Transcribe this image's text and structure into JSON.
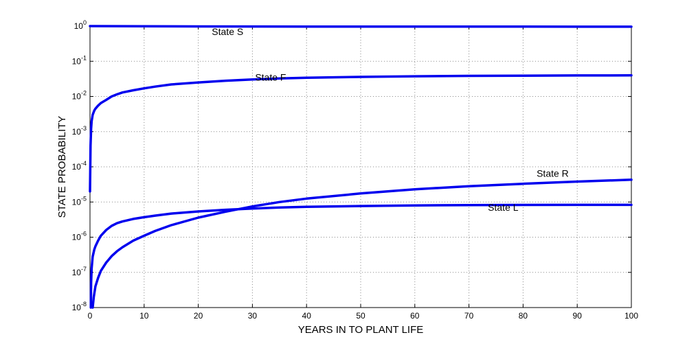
{
  "chart_data": {
    "type": "line",
    "xlabel": "YEARS IN TO PLANT LIFE",
    "ylabel": "STATE PROBABILITY",
    "xlim": [
      0,
      100
    ],
    "ylim": [
      1e-08,
      1
    ],
    "yscale": "log",
    "grid": true,
    "xticks": [
      0,
      10,
      20,
      30,
      40,
      50,
      60,
      70,
      80,
      90,
      100
    ],
    "yticks": [
      {
        "base": "10",
        "exp": "-8",
        "value": 1e-08
      },
      {
        "base": "10",
        "exp": "-7",
        "value": 1e-07
      },
      {
        "base": "10",
        "exp": "-6",
        "value": 1e-06
      },
      {
        "base": "10",
        "exp": "-5",
        "value": 1e-05
      },
      {
        "base": "10",
        "exp": "-4",
        "value": 0.0001
      },
      {
        "base": "10",
        "exp": "-3",
        "value": 0.001
      },
      {
        "base": "10",
        "exp": "-2",
        "value": 0.01
      },
      {
        "base": "10",
        "exp": "-1",
        "value": 0.1
      },
      {
        "base": "10",
        "exp": "0",
        "value": 1
      }
    ],
    "line_color": "#0000ee",
    "series": [
      {
        "name": "State S",
        "x": [
          0,
          10,
          20,
          30,
          40,
          50,
          60,
          70,
          80,
          90,
          100
        ],
        "y": [
          1,
          0.985,
          0.978,
          0.973,
          0.97,
          0.967,
          0.965,
          0.964,
          0.963,
          0.962,
          0.962
        ]
      },
      {
        "name": "State F",
        "x": [
          0,
          0.1,
          0.2,
          0.3,
          0.5,
          0.8,
          1,
          1.5,
          2,
          3,
          4,
          5,
          6,
          8,
          10,
          12,
          15,
          20,
          25,
          30,
          35,
          40,
          50,
          60,
          70,
          80,
          90,
          100
        ],
        "y": [
          2e-05,
          0.0004,
          0.0012,
          0.002,
          0.003,
          0.004,
          0.0045,
          0.0055,
          0.0065,
          0.008,
          0.01,
          0.0115,
          0.013,
          0.015,
          0.017,
          0.019,
          0.022,
          0.025,
          0.028,
          0.0305,
          0.0325,
          0.034,
          0.036,
          0.0375,
          0.0385,
          0.039,
          0.0395,
          0.0397
        ]
      },
      {
        "name": "State R",
        "x": [
          0.5,
          0.7,
          1,
          1.5,
          2,
          3,
          4,
          5,
          6,
          8,
          10,
          12,
          15,
          20,
          25,
          30,
          35,
          40,
          50,
          60,
          70,
          80,
          90,
          100
        ],
        "y": [
          1e-08,
          2e-08,
          4e-08,
          7e-08,
          1.1e-07,
          1.9e-07,
          2.9e-07,
          4e-07,
          5.2e-07,
          8e-07,
          1.1e-06,
          1.5e-06,
          2.2e-06,
          3.6e-06,
          5.3e-06,
          7.5e-06,
          1e-05,
          1.25e-05,
          1.75e-05,
          2.3e-05,
          2.8e-05,
          3.3e-05,
          3.8e-05,
          4.3e-05
        ]
      },
      {
        "name": "State L",
        "x": [
          0.15,
          0.2,
          0.3,
          0.5,
          0.8,
          1,
          1.5,
          2,
          3,
          4,
          5,
          6,
          8,
          10,
          12,
          15,
          20,
          25,
          30,
          35,
          40,
          50,
          60,
          70,
          80,
          90,
          100
        ],
        "y": [
          1e-08,
          5e-08,
          1.3e-07,
          2.8e-07,
          4.5e-07,
          5.5e-07,
          8e-07,
          1.1e-06,
          1.6e-06,
          2.1e-06,
          2.5e-06,
          2.8e-06,
          3.3e-06,
          3.7e-06,
          4.1e-06,
          4.7e-06,
          5.4e-06,
          6e-06,
          6.5e-06,
          7e-06,
          7.3e-06,
          7.7e-06,
          8e-06,
          8.15e-06,
          8.25e-06,
          8.3e-06,
          8.3e-06
        ]
      }
    ],
    "annotations": [
      {
        "text": "State S",
        "x": 22.5,
        "y": 0.56
      },
      {
        "text": "State F",
        "x": 30.5,
        "y": 0.028
      },
      {
        "text": "State R",
        "x": 82.5,
        "y": 5.2e-05
      },
      {
        "text": "State L",
        "x": 73.5,
        "y": 5.6e-06
      }
    ]
  }
}
